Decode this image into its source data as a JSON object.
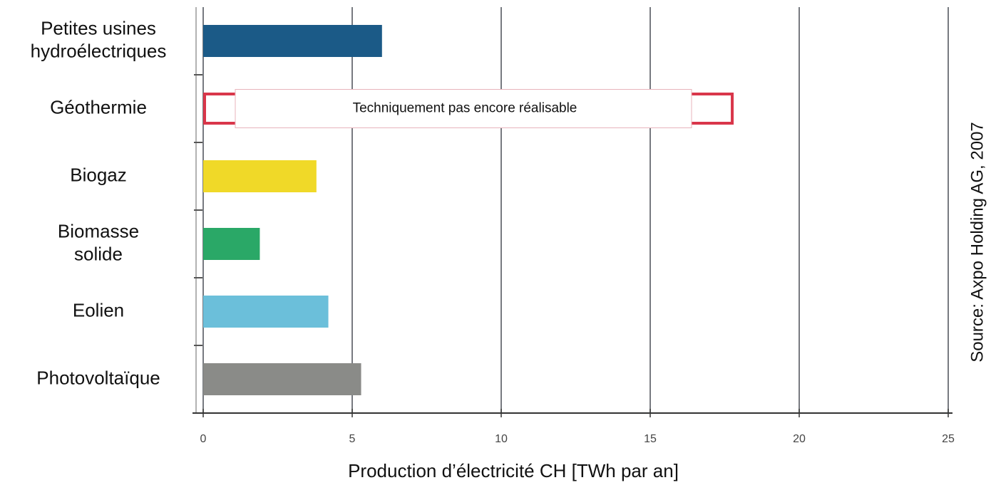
{
  "chart_data": {
    "type": "barh",
    "categories": [
      [
        "Petites usines",
        "hydroélectriques"
      ],
      [
        "Géothermie"
      ],
      [
        "Biogaz"
      ],
      [
        "Biomasse",
        "solide"
      ],
      [
        "Eolien"
      ],
      [
        "Photovoltaïque"
      ]
    ],
    "values": [
      6,
      17.8,
      3.8,
      1.9,
      4.2,
      5.3
    ],
    "colors": [
      "#1b5a87",
      "#d9364a",
      "#f0d928",
      "#2aa867",
      "#6bbfda",
      "#8a8b88"
    ],
    "bar_style": [
      "solid",
      "outline",
      "solid",
      "solid",
      "solid",
      "solid"
    ],
    "annotation": "Techniquement pas encore réalisable",
    "xlabel": "Production d’électricité CH [TWh par an]",
    "source": "Source: Axpo Holding AG, 2007",
    "xlim": [
      0,
      25
    ],
    "xticks": [
      0,
      5,
      10,
      15,
      20,
      25
    ],
    "grid": true
  }
}
